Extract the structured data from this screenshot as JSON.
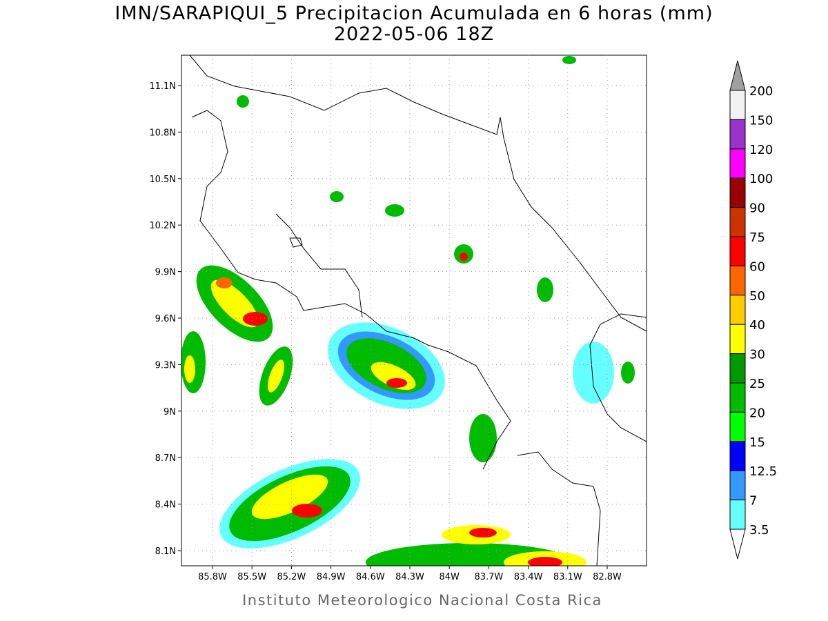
{
  "header": {
    "title": "IMN/SARAPIQUI_5 Precipitacion Acumulada en 6 horas (mm)",
    "subtitle": "2022-05-06 18Z"
  },
  "map": {
    "lat_labels": [
      "11.1N",
      "10.8N",
      "10.5N",
      "10.2N",
      "9.9N",
      "9.6N",
      "9.3N",
      "9N",
      "8.7N",
      "8.4N",
      "8.1N"
    ],
    "lon_labels": [
      "85.8W",
      "85.5W",
      "85.2W",
      "84.9W",
      "84.6W",
      "84.3W",
      "84W",
      "83.7W",
      "83.4W",
      "83.1W",
      "82.8W"
    ]
  },
  "colorbar": {
    "labels": [
      "200",
      "150",
      "120",
      "100",
      "90",
      "75",
      "60",
      "50",
      "40",
      "30",
      "25",
      "20",
      "15",
      "12.5",
      "7",
      "3.5"
    ],
    "colors": [
      "#f2f2f2",
      "#9933cc",
      "#ff00ff",
      "#990000",
      "#cc3300",
      "#ff0000",
      "#ff6600",
      "#ffcc00",
      "#ffff00",
      "#009900",
      "#00bb00",
      "#00ff00",
      "#0000ff",
      "#3399ff",
      "#66ffff"
    ],
    "over_color": "#a0a0a0",
    "under_color": "#ffffff"
  },
  "footer": {
    "text": "Instituto Meteorologico Nacional Costa Rica"
  }
}
